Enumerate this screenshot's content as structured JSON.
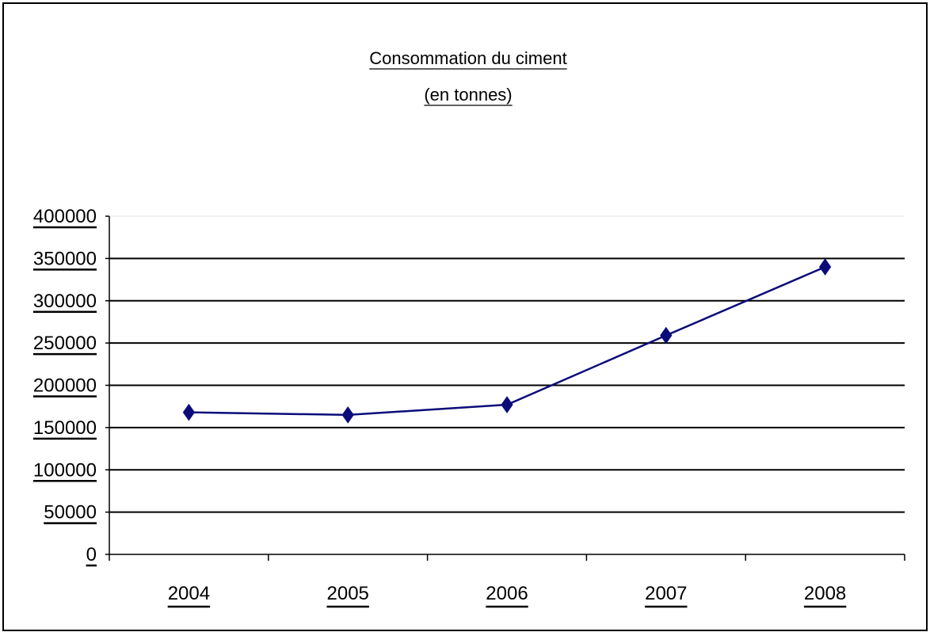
{
  "chart_data": {
    "type": "line",
    "title": "Consommation du ciment",
    "subtitle": "(en tonnes)",
    "xlabel": "",
    "ylabel": "",
    "categories": [
      "2004",
      "2005",
      "2006",
      "2007",
      "2008"
    ],
    "series": [
      {
        "values": [
          168000,
          165000,
          177000,
          259000,
          340000
        ],
        "color": "#0b0b7a",
        "marker": "diamond"
      }
    ],
    "ylim": [
      0,
      400000
    ],
    "yticks": [
      0,
      50000,
      100000,
      150000,
      200000,
      250000,
      300000,
      350000,
      400000
    ],
    "ytick_labels": [
      "0",
      "50000",
      "100000",
      "150000",
      "200000",
      "250000",
      "300000",
      "350000",
      "400000"
    ],
    "grid": true,
    "legend": "none",
    "colors": {
      "line": "#0b0b7a",
      "grid": "#000000",
      "axis": "#000000",
      "background": "#ffffff"
    }
  }
}
